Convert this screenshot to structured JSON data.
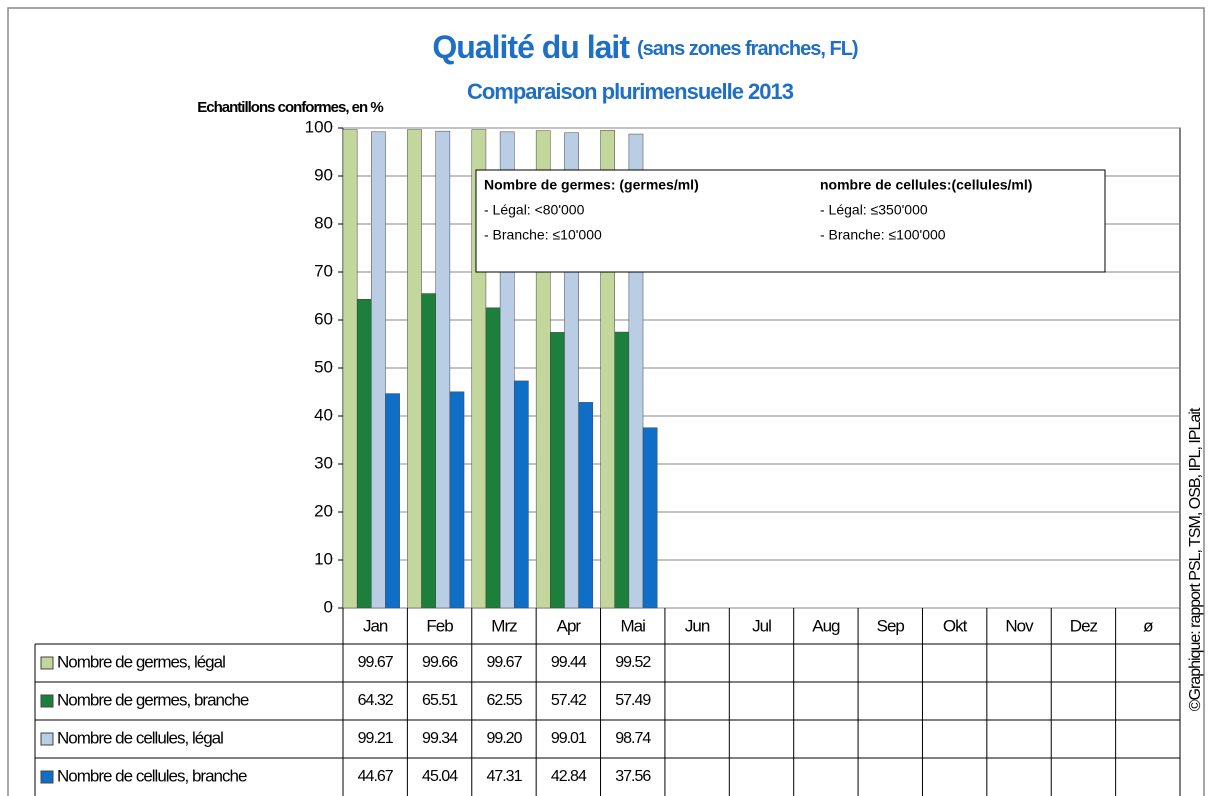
{
  "chart_data": {
    "type": "bar",
    "title": "Qualité du lait",
    "title_note": "(sans zones franches, FL)",
    "subtitle": "Comparaison plurimensuelle 2013",
    "y_label": "Echantillons conformes, en %",
    "source": "©Graphique: rapport PSL, TSM, OSB, IPL, IPLait",
    "categories": [
      "Jan",
      "Feb",
      "Mrz",
      "Apr",
      "Mai",
      "Jun",
      "Jul",
      "Aug",
      "Sep",
      "Okt",
      "Nov",
      "Dez",
      "ø"
    ],
    "series": [
      {
        "name": "Nombre de germes, légal",
        "color": "#c3d69b",
        "values": [
          99.67,
          99.66,
          99.67,
          99.44,
          99.52,
          null,
          null,
          null,
          null,
          null,
          null,
          null,
          null
        ]
      },
      {
        "name": "Nombre de germes, branche",
        "color": "#1d7f3c",
        "values": [
          64.32,
          65.51,
          62.55,
          57.42,
          57.49,
          null,
          null,
          null,
          null,
          null,
          null,
          null,
          null
        ]
      },
      {
        "name": "Nombre de cellules, légal",
        "color": "#b9cde5",
        "values": [
          99.21,
          99.34,
          99.2,
          99.01,
          98.74,
          null,
          null,
          null,
          null,
          null,
          null,
          null,
          null
        ],
        "value_labels": [
          "99.21",
          "99.34",
          "99.20",
          "99.01",
          "98.74",
          null,
          null,
          null,
          null,
          null,
          null,
          null,
          null
        ]
      },
      {
        "name": "Nombre de cellules, branche",
        "color": "#0f6fc6",
        "values": [
          44.67,
          45.04,
          47.31,
          42.84,
          37.56,
          null,
          null,
          null,
          null,
          null,
          null,
          null,
          null
        ]
      }
    ],
    "ylim": [
      0,
      100
    ],
    "yticks": [
      0,
      10,
      20,
      30,
      40,
      50,
      60,
      70,
      80,
      90,
      100
    ],
    "grid": true,
    "annotation": {
      "left": [
        "Nombre de germes: (germes/ml)",
        "- Légal: <80'000",
        "- Branche: ≤10'000"
      ],
      "right": [
        "nombre de cellules:(cellules/ml)",
        "- Légal: ≤350'000",
        "- Branche: ≤100'000"
      ]
    }
  }
}
